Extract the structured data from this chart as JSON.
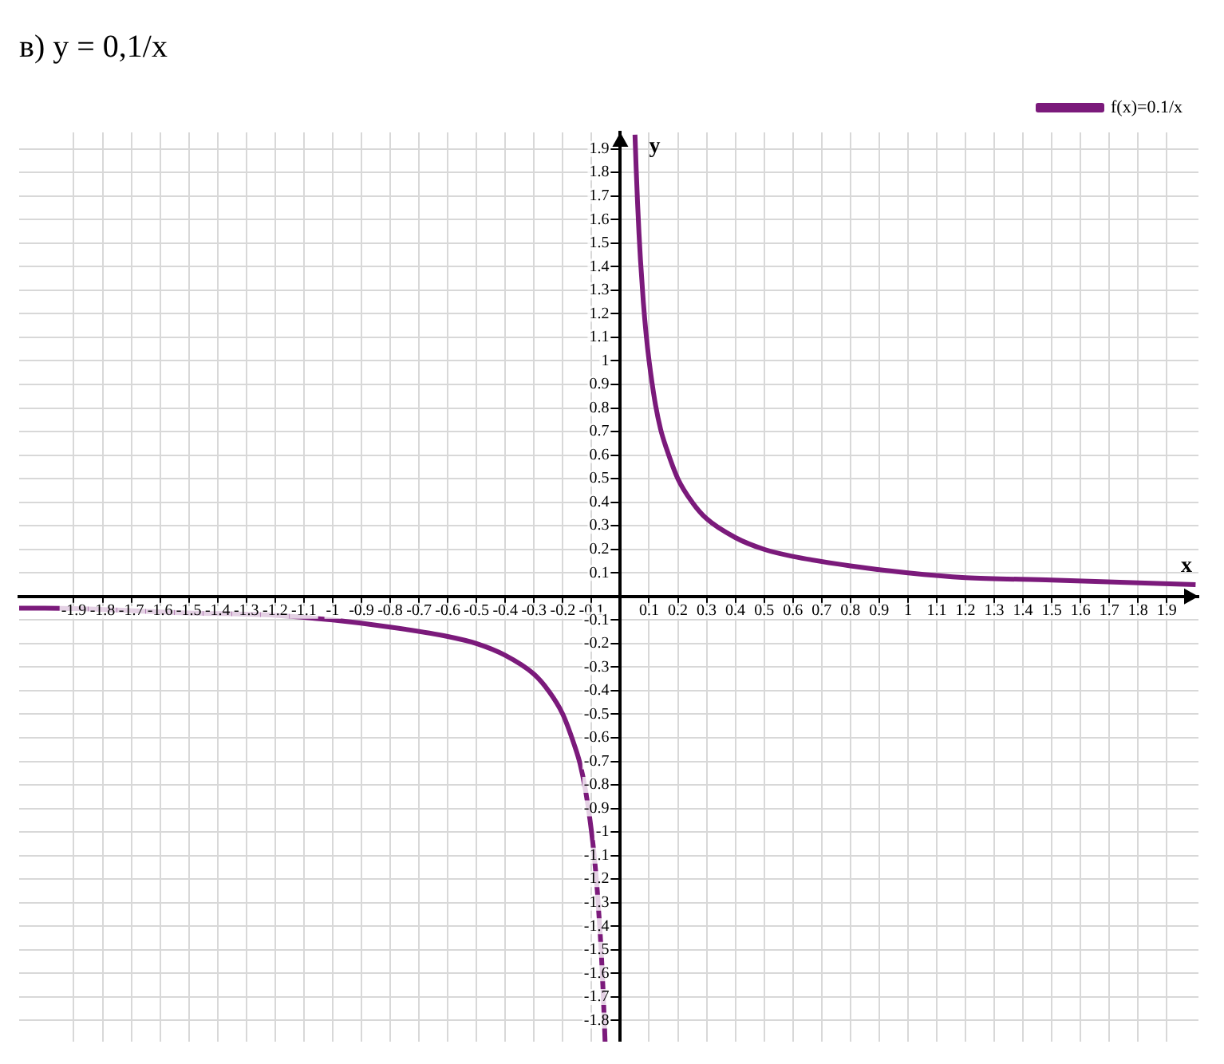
{
  "chart_data": {
    "type": "line",
    "title": "в) y = 0,1/x",
    "xlabel": "x",
    "ylabel": "y",
    "series": [
      {
        "name": "f(x)=0.1/x",
        "color": "#7b1a7b",
        "x": [
          -2.09,
          -2,
          -1.5,
          -1.2,
          -1,
          -0.8,
          -0.6,
          -0.5,
          -0.4,
          -0.3,
          -0.25,
          -0.2,
          -0.16,
          -0.14,
          -0.12,
          -0.1,
          -0.09,
          -0.08,
          -0.07,
          -0.065,
          -0.06,
          -0.055,
          -0.053,
          0,
          0.051,
          0.055,
          0.06,
          0.065,
          0.07,
          0.08,
          0.09,
          0.1,
          0.12,
          0.14,
          0.16,
          0.2,
          0.25,
          0.3,
          0.4,
          0.5,
          0.6,
          0.8,
          1,
          1.2,
          1.5,
          2
        ],
        "values": [
          -0.05,
          -0.05,
          -0.07,
          -0.08,
          -0.1,
          -0.13,
          -0.17,
          -0.2,
          -0.25,
          -0.33,
          -0.4,
          -0.5,
          -0.63,
          -0.71,
          -0.83,
          -1,
          -1.11,
          -1.25,
          -1.43,
          -1.54,
          -1.67,
          -1.82,
          -1.89,
          null,
          1.96,
          1.82,
          1.67,
          1.54,
          1.43,
          1.25,
          1.11,
          1,
          0.83,
          0.71,
          0.63,
          0.5,
          0.4,
          0.33,
          0.25,
          0.2,
          0.17,
          0.13,
          0.1,
          0.08,
          0.07,
          0.05
        ]
      }
    ],
    "xlim": [
      -2.09,
      2.01
    ],
    "ylim": [
      -1.89,
      1.97
    ],
    "xticks": [
      -1.9,
      -1.8,
      -1.7,
      -1.6,
      -1.5,
      -1.4,
      -1.3,
      -1.2,
      -1.1,
      -1,
      -0.9,
      -0.8,
      -0.7,
      -0.6,
      -0.5,
      -0.4,
      -0.3,
      -0.2,
      -0.1,
      0.1,
      0.2,
      0.3,
      0.4,
      0.5,
      0.6,
      0.7,
      0.8,
      0.9,
      1,
      1.1,
      1.2,
      1.3,
      1.4,
      1.5,
      1.6,
      1.7,
      1.8,
      1.9
    ],
    "yticks": [
      -1.8,
      -1.7,
      -1.6,
      -1.5,
      -1.4,
      -1.3,
      -1.2,
      -1.1,
      -1,
      -0.9,
      -0.8,
      -0.7,
      -0.6,
      -0.5,
      -0.4,
      -0.3,
      -0.2,
      -0.1,
      0.1,
      0.2,
      0.3,
      0.4,
      0.5,
      0.6,
      0.7,
      0.8,
      0.9,
      1,
      1.1,
      1.2,
      1.3,
      1.4,
      1.5,
      1.6,
      1.7,
      1.8,
      1.9
    ],
    "grid": true,
    "legend": "top right",
    "marker": "none",
    "line_style": "solid"
  }
}
